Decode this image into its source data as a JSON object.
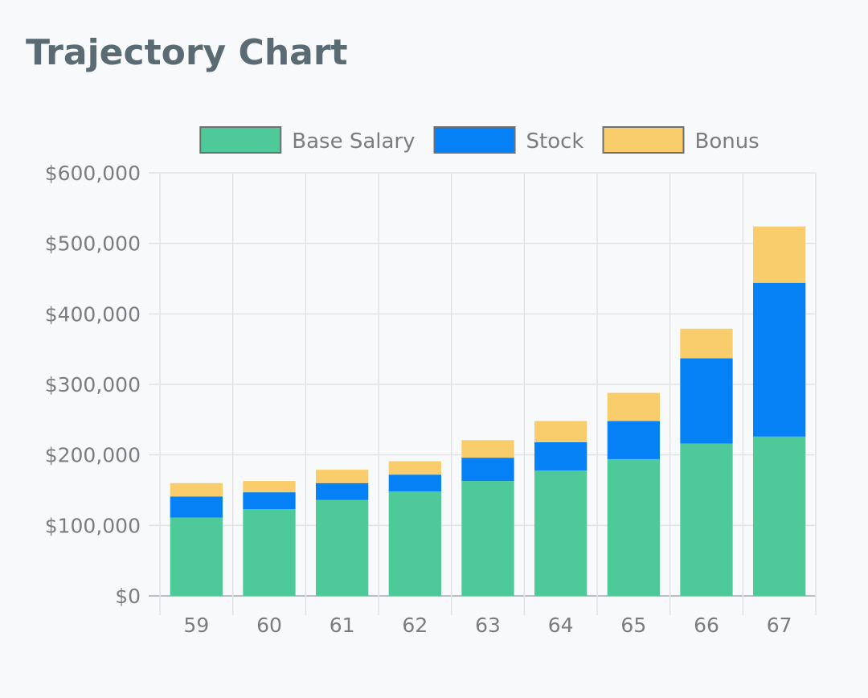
{
  "header": {
    "title": "Trajectory Chart"
  },
  "chart_data": {
    "type": "bar",
    "stacked": true,
    "categories": [
      "59",
      "60",
      "61",
      "62",
      "63",
      "64",
      "65",
      "66",
      "67"
    ],
    "series": [
      {
        "name": "Base Salary",
        "color": "#4ec99a",
        "values": [
          111000,
          123000,
          136000,
          148000,
          163000,
          178000,
          194000,
          216000,
          226000
        ]
      },
      {
        "name": "Stock",
        "color": "#0580f5",
        "values": [
          30000,
          24000,
          24000,
          24000,
          33000,
          40000,
          54000,
          121000,
          218000
        ]
      },
      {
        "name": "Bonus",
        "color": "#f9cd6b",
        "values": [
          19000,
          16000,
          19000,
          19000,
          25000,
          30000,
          40000,
          42000,
          80000
        ]
      }
    ],
    "ylim": [
      0,
      600000
    ],
    "yticks": [
      0,
      100000,
      200000,
      300000,
      400000,
      500000,
      600000
    ],
    "ytick_labels": [
      "$0",
      "$100,000",
      "$200,000",
      "$300,000",
      "$400,000",
      "$500,000",
      "$600,000"
    ],
    "grid": true,
    "legend_position": "top",
    "xlabel": "",
    "ylabel": ""
  }
}
